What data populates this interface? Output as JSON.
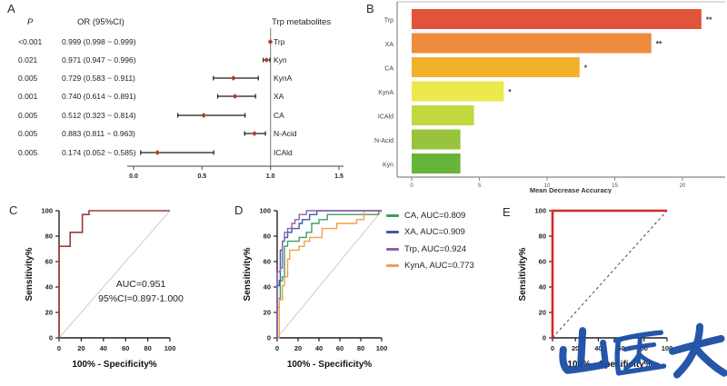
{
  "panels": {
    "A": {
      "letter": "A"
    },
    "B": {
      "letter": "B"
    },
    "C": {
      "letter": "C",
      "annotation_line1": "AUC=0.951",
      "annotation_line2": "95%CI=0.897-1.000"
    },
    "D": {
      "letter": "D",
      "legend": [
        {
          "label": "CA, AUC=0.809",
          "color": "#3f9e63"
        },
        {
          "label": "XA, AUC=0.909",
          "color": "#3b5ca8"
        },
        {
          "label": "Trp, AUC=0.924",
          "color": "#8f63a8"
        },
        {
          "label": "KynA, AUC=0.773",
          "color": "#f0a04c"
        }
      ]
    },
    "E": {
      "letter": "E"
    }
  },
  "watermark": {
    "text": "山医大",
    "color": "#1b4da6"
  },
  "chart_data": [
    {
      "panel": "A",
      "type": "forest",
      "columns": {
        "p": "P",
        "or": "OR (95%CI)",
        "metabolites": "Trp metabolites"
      },
      "rows": [
        {
          "p": "<0.001",
          "or_text": "0.999 (0.998 ~ 0.999)",
          "label": "Trp",
          "or": 0.999,
          "lo": 0.998,
          "hi": 0.999
        },
        {
          "p": "0.021",
          "or_text": "0.971 (0.947 ~ 0.996)",
          "label": "Kyn",
          "or": 0.971,
          "lo": 0.947,
          "hi": 0.996
        },
        {
          "p": "0.005",
          "or_text": "0.729 (0.583 ~ 0.911)",
          "label": "KynA",
          "or": 0.729,
          "lo": 0.583,
          "hi": 0.911
        },
        {
          "p": "0.001",
          "or_text": "0.740 (0.614 ~ 0.891)",
          "label": "XA",
          "or": 0.74,
          "lo": 0.614,
          "hi": 0.891
        },
        {
          "p": "0.005",
          "or_text": "0.512 (0.323 ~ 0.814)",
          "label": "CA",
          "or": 0.512,
          "lo": 0.323,
          "hi": 0.814
        },
        {
          "p": "0.005",
          "or_text": "0.883 (0.811 ~ 0.963)",
          "label": "N-Acid",
          "or": 0.883,
          "lo": 0.811,
          "hi": 0.963
        },
        {
          "p": "0.005",
          "or_text": "0.174 (0.052 ~ 0.585)",
          "label": "ICAld",
          "or": 0.174,
          "lo": 0.052,
          "hi": 0.585
        }
      ],
      "x_ticks": [
        0.0,
        0.5,
        1.0,
        1.5
      ],
      "xlim": [
        0,
        1.5
      ],
      "ref_line": 1.0,
      "marker_color": "#b03a2e"
    },
    {
      "panel": "B",
      "type": "bar",
      "orientation": "horizontal",
      "categories": [
        "Trp",
        "XA",
        "CA",
        "KynA",
        "ICAld",
        "N-Acid",
        "Kyn"
      ],
      "values": [
        21.4,
        17.7,
        12.4,
        6.8,
        4.6,
        3.6,
        3.6
      ],
      "significance": [
        "**",
        "**",
        "*",
        "*",
        "",
        "",
        ""
      ],
      "colors": [
        "#e2533c",
        "#ed8b3d",
        "#f3b02a",
        "#ece94e",
        "#c3d83f",
        "#97c43c",
        "#67b43c"
      ],
      "xlabel": "Mean Decrease Accuracy",
      "x_ticks": [
        0,
        5,
        10,
        15,
        20
      ],
      "xlim": [
        0,
        23
      ]
    },
    {
      "panel": "C",
      "type": "line",
      "xlabel": "100% - Specificity%",
      "ylabel": "Sensitivity%",
      "x_ticks": [
        0,
        20,
        40,
        60,
        80,
        100
      ],
      "y_ticks": [
        0,
        20,
        40,
        60,
        80,
        100
      ],
      "xlim": [
        0,
        100
      ],
      "ylim": [
        0,
        100
      ],
      "annotation": [
        "AUC=0.951",
        "95%CI=0.897-1.000"
      ],
      "diagonal": {
        "style": "solid",
        "color": "#dcc6c6"
      },
      "series": [
        {
          "name": "ROC",
          "color": "#9e3a3a",
          "width": 1.6,
          "points": [
            [
              0,
              0
            ],
            [
              0,
              72
            ],
            [
              10,
              72
            ],
            [
              10,
              83
            ],
            [
              21,
              83
            ],
            [
              21,
              97
            ],
            [
              27,
              97
            ],
            [
              27,
              100
            ],
            [
              100,
              100
            ]
          ]
        }
      ]
    },
    {
      "panel": "D",
      "type": "line",
      "xlabel": "100% - Specificity%",
      "ylabel": "Sensitivity%",
      "x_ticks": [
        0,
        20,
        40,
        60,
        80,
        100
      ],
      "y_ticks": [
        0,
        20,
        40,
        60,
        80,
        100
      ],
      "xlim": [
        0,
        100
      ],
      "ylim": [
        0,
        100
      ],
      "diagonal": {
        "style": "solid",
        "color": "#dcc6c6"
      },
      "series": [
        {
          "name": "CA",
          "auc": "AUC=0.809",
          "color": "#3f9e63",
          "width": 1.4,
          "points": [
            [
              0,
              0
            ],
            [
              0,
              24
            ],
            [
              2,
              24
            ],
            [
              2,
              31
            ],
            [
              3,
              31
            ],
            [
              3,
              45
            ],
            [
              5,
              45
            ],
            [
              5,
              48
            ],
            [
              7,
              48
            ],
            [
              7,
              72
            ],
            [
              10,
              72
            ],
            [
              10,
              76
            ],
            [
              21,
              76
            ],
            [
              21,
              79
            ],
            [
              28,
              79
            ],
            [
              28,
              83
            ],
            [
              33,
              83
            ],
            [
              33,
              90
            ],
            [
              40,
              90
            ],
            [
              40,
              93
            ],
            [
              48,
              93
            ],
            [
              48,
              97
            ],
            [
              97,
              97
            ],
            [
              97,
              100
            ],
            [
              100,
              100
            ]
          ]
        },
        {
          "name": "KynA",
          "auc": "AUC=0.773",
          "color": "#f0a04c",
          "width": 1.4,
          "points": [
            [
              0,
              0
            ],
            [
              2,
              0
            ],
            [
              2,
              30
            ],
            [
              5,
              30
            ],
            [
              5,
              41
            ],
            [
              7,
              41
            ],
            [
              7,
              48
            ],
            [
              10,
              48
            ],
            [
              10,
              62
            ],
            [
              12,
              62
            ],
            [
              12,
              69
            ],
            [
              21,
              69
            ],
            [
              21,
              72
            ],
            [
              26,
              72
            ],
            [
              26,
              76
            ],
            [
              31,
              76
            ],
            [
              31,
              79
            ],
            [
              43,
              79
            ],
            [
              43,
              86
            ],
            [
              57,
              86
            ],
            [
              57,
              90
            ],
            [
              76,
              90
            ],
            [
              76,
              93
            ],
            [
              83,
              93
            ],
            [
              83,
              100
            ],
            [
              100,
              100
            ]
          ]
        },
        {
          "name": "XA",
          "auc": "AUC=0.909",
          "color": "#3b5ca8",
          "width": 1.4,
          "points": [
            [
              0,
              0
            ],
            [
              0,
              41
            ],
            [
              2,
              41
            ],
            [
              2,
              45
            ],
            [
              3,
              45
            ],
            [
              3,
              69
            ],
            [
              5,
              69
            ],
            [
              5,
              76
            ],
            [
              7,
              76
            ],
            [
              7,
              79
            ],
            [
              10,
              79
            ],
            [
              10,
              83
            ],
            [
              14,
              83
            ],
            [
              14,
              86
            ],
            [
              21,
              86
            ],
            [
              21,
              90
            ],
            [
              24,
              90
            ],
            [
              24,
              93
            ],
            [
              31,
              93
            ],
            [
              31,
              97
            ],
            [
              38,
              97
            ],
            [
              38,
              100
            ],
            [
              100,
              100
            ]
          ]
        },
        {
          "name": "Trp",
          "auc": "AUC=0.924",
          "color": "#8f63a8",
          "width": 1.4,
          "points": [
            [
              0,
              0
            ],
            [
              0,
              52
            ],
            [
              3,
              52
            ],
            [
              3,
              55
            ],
            [
              5,
              55
            ],
            [
              5,
              76
            ],
            [
              7,
              76
            ],
            [
              7,
              83
            ],
            [
              10,
              83
            ],
            [
              10,
              86
            ],
            [
              14,
              86
            ],
            [
              14,
              90
            ],
            [
              17,
              90
            ],
            [
              17,
              93
            ],
            [
              21,
              93
            ],
            [
              21,
              97
            ],
            [
              28,
              97
            ],
            [
              28,
              100
            ],
            [
              100,
              100
            ]
          ]
        }
      ]
    },
    {
      "panel": "E",
      "type": "line",
      "xlabel": "100% - Specificity%",
      "ylabel": "Sensitivity%",
      "x_ticks": [
        0,
        20,
        40,
        60,
        80,
        100
      ],
      "y_ticks": [
        0,
        20,
        40,
        60,
        80,
        100
      ],
      "xlim": [
        0,
        100
      ],
      "ylim": [
        0,
        100
      ],
      "diagonal": {
        "style": "dashed",
        "color": "#444444"
      },
      "series": [
        {
          "name": "ROC",
          "color": "#d42a28",
          "width": 2.6,
          "points": [
            [
              0,
              0
            ],
            [
              0,
              100
            ],
            [
              100,
              100
            ]
          ]
        }
      ]
    }
  ]
}
